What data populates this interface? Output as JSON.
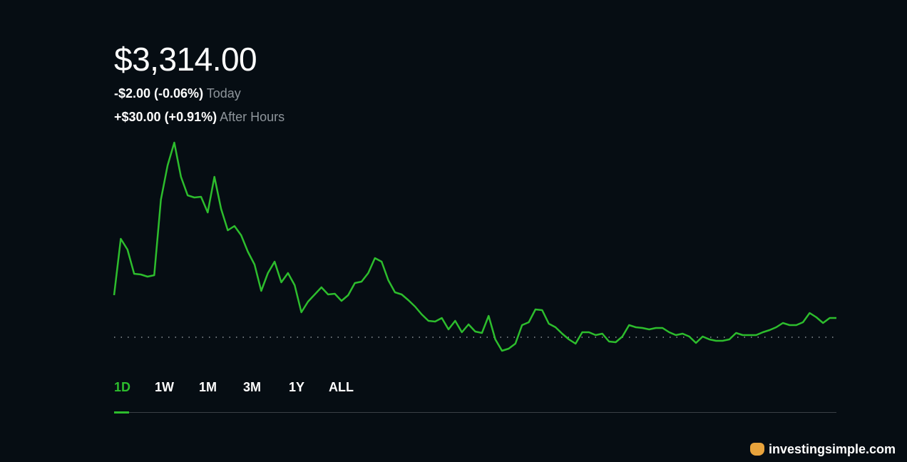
{
  "header": {
    "price": "$3,314.00",
    "today": {
      "change": "-$2.00 (-0.06%)",
      "label": "Today"
    },
    "after_hours": {
      "change": "+$30.00 (+0.91%)",
      "label": "After Hours"
    }
  },
  "chart_data": {
    "type": "line",
    "color": "#2dbd2d",
    "ylim": [
      3310.6,
      3372.6
    ],
    "baseline": 3316,
    "values": [
      3327.8,
      3343.6,
      3340.6,
      3333.8,
      3333.6,
      3333.0,
      3333.4,
      3354.6,
      3364.2,
      3370.6,
      3361.0,
      3355.8,
      3355.2,
      3355.4,
      3351.0,
      3361.0,
      3352.0,
      3346.0,
      3347.2,
      3344.6,
      3340.0,
      3336.4,
      3329.0,
      3334.0,
      3337.2,
      3331.4,
      3334.0,
      3330.6,
      3323.0,
      3326.0,
      3328.0,
      3330.0,
      3328.0,
      3328.2,
      3326.2,
      3327.8,
      3331.2,
      3331.6,
      3334.0,
      3338.2,
      3337.2,
      3332.0,
      3328.6,
      3328.0,
      3326.4,
      3324.6,
      3322.4,
      3320.6,
      3320.4,
      3321.4,
      3318.2,
      3320.6,
      3317.4,
      3319.6,
      3317.6,
      3317.2,
      3322.0,
      3315.4,
      3312.2,
      3312.8,
      3314.2,
      3319.4,
      3320.2,
      3323.8,
      3323.6,
      3319.8,
      3318.8,
      3317.0,
      3315.4,
      3314.2,
      3317.4,
      3317.4,
      3316.6,
      3317.0,
      3314.8,
      3314.6,
      3316.2,
      3319.4,
      3318.8,
      3318.6,
      3318.2,
      3318.6,
      3318.6,
      3317.4,
      3316.6,
      3317.0,
      3316.2,
      3314.4,
      3316.2,
      3315.4,
      3315.0,
      3315.0,
      3315.4,
      3317.2,
      3316.6,
      3316.6,
      3316.6,
      3317.4,
      3318.0,
      3318.8,
      3320.0,
      3319.4,
      3319.4,
      3320.2,
      3322.8,
      3321.6,
      3320.0,
      3321.4,
      3321.4
    ]
  },
  "tabs": [
    "1D",
    "1W",
    "1M",
    "3M",
    "1Y",
    "ALL"
  ],
  "active_tab": 0,
  "watermark": "investingsimple.com"
}
